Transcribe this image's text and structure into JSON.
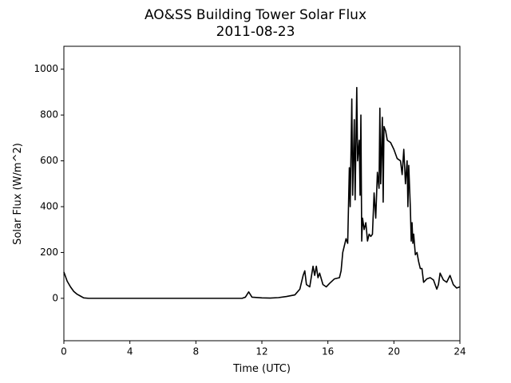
{
  "chart_data": {
    "type": "line",
    "title": "AO&SS Building Tower Solar Flux",
    "subtitle": "2011-08-23",
    "x_label": "Time (UTC)",
    "y_label": "Solar Flux (W/m^2)",
    "xlim": [
      0,
      24
    ],
    "xticks": [
      0,
      4,
      8,
      12,
      16,
      20,
      24
    ],
    "ylim": [
      -185,
      1100
    ],
    "yticks": [
      0,
      200,
      400,
      600,
      800,
      1000
    ],
    "series": [
      {
        "color": "#000000",
        "x": [
          0,
          0.2,
          0.4,
          0.6,
          0.8,
          1.0,
          1.2,
          1.5,
          3,
          5,
          7,
          9,
          10.8,
          11.0,
          11.2,
          11.4,
          12,
          12.5,
          13,
          13.5,
          14,
          14.3,
          14.5,
          14.6,
          14.7,
          14.9,
          15.1,
          15.2,
          15.3,
          15.4,
          15.5,
          15.7,
          15.9,
          16.1,
          16.4,
          16.7,
          16.8,
          16.9,
          17.1,
          17.2,
          17.3,
          17.35,
          17.45,
          17.5,
          17.6,
          17.65,
          17.75,
          17.8,
          17.9,
          17.95,
          18.0,
          18.05,
          18.1,
          18.2,
          18.3,
          18.4,
          18.5,
          18.6,
          18.7,
          18.8,
          18.9,
          19.0,
          19.1,
          19.15,
          19.2,
          19.3,
          19.35,
          19.4,
          19.5,
          19.6,
          19.8,
          20.0,
          20.2,
          20.4,
          20.5,
          20.6,
          20.7,
          20.8,
          20.85,
          20.9,
          21.0,
          21.05,
          21.1,
          21.15,
          21.2,
          21.3,
          21.4,
          21.5,
          21.6,
          21.7,
          21.8,
          22.0,
          22.2,
          22.4,
          22.5,
          22.6,
          22.7,
          22.8,
          23.0,
          23.2,
          23.4,
          23.6,
          23.8,
          24
        ],
        "values": [
          115,
          75,
          50,
          30,
          18,
          10,
          2,
          0,
          0,
          0,
          0,
          0,
          0,
          5,
          28,
          5,
          2,
          1,
          3,
          8,
          15,
          40,
          100,
          120,
          60,
          50,
          140,
          100,
          140,
          90,
          110,
          60,
          50,
          65,
          85,
          90,
          120,
          200,
          260,
          240,
          570,
          400,
          870,
          450,
          780,
          430,
          920,
          600,
          690,
          450,
          800,
          250,
          350,
          300,
          330,
          250,
          280,
          270,
          280,
          460,
          350,
          550,
          480,
          830,
          500,
          790,
          420,
          750,
          730,
          690,
          680,
          650,
          610,
          600,
          540,
          650,
          500,
          600,
          400,
          580,
          390,
          250,
          330,
          240,
          280,
          190,
          200,
          160,
          130,
          130,
          70,
          85,
          90,
          80,
          60,
          40,
          60,
          110,
          80,
          70,
          100,
          60,
          45,
          50
        ]
      }
    ]
  }
}
